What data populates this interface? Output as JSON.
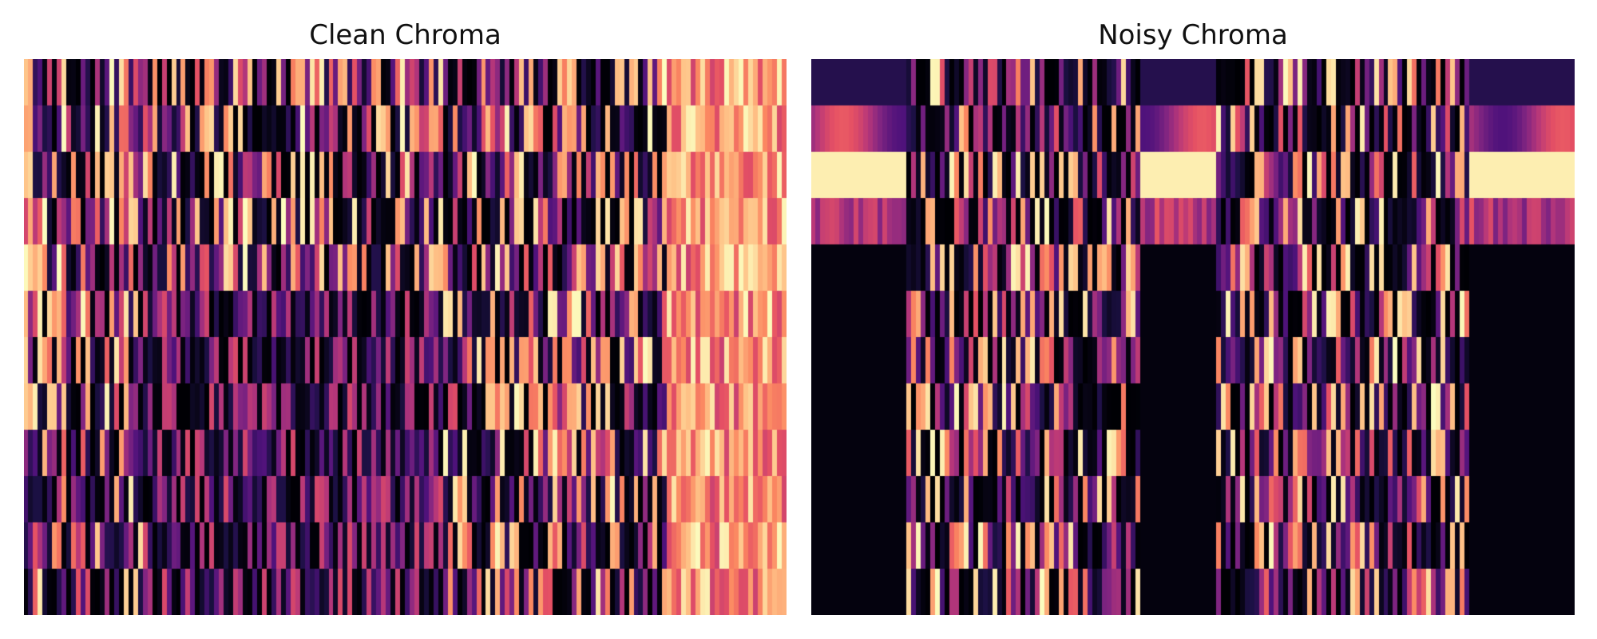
{
  "chart_data": [
    {
      "type": "heatmap",
      "title": "Clean Chroma",
      "rows": 12,
      "columns": 160,
      "axes_visible": false,
      "colormap": "magma",
      "value_range": [
        0,
        1
      ],
      "description": "12 chroma rows x ~160 time frames; dense vertical streaks, bright orange/yellow band toward the right"
    },
    {
      "type": "heatmap",
      "title": "Noisy Chroma",
      "rows": 12,
      "columns": 160,
      "axes_visible": false,
      "colormap": "magma",
      "value_range": [
        0,
        1
      ],
      "description": "12 chroma rows x ~160 time frames; bright top rows (rows 2-3) in sustained blocks at left, middle and right; dark lower rows at both ends"
    }
  ]
}
